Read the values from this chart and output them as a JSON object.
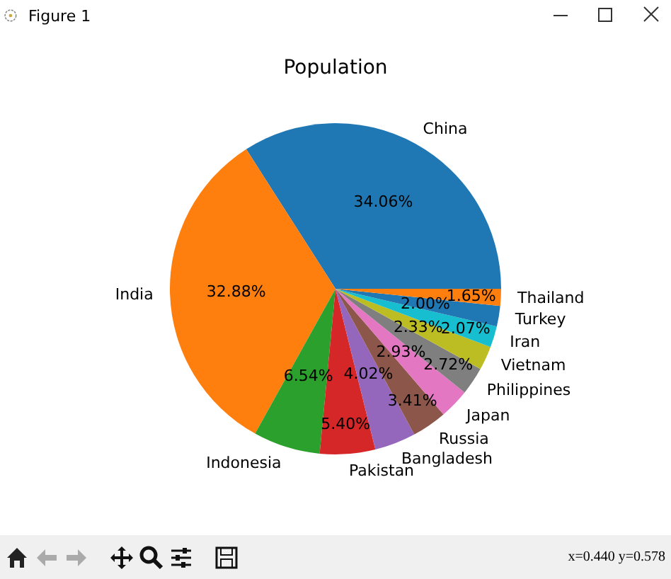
{
  "chart_data": {
    "type": "pie",
    "title": "Population",
    "categories": [
      "China",
      "India",
      "Indonesia",
      "Pakistan",
      "Bangladesh",
      "Russia",
      "Japan",
      "Philippines",
      "Vietnam",
      "Iran",
      "Turkey",
      "Thailand"
    ],
    "values": [
      34.06,
      32.88,
      6.54,
      5.4,
      4.02,
      3.41,
      2.93,
      2.72,
      2.33,
      2.07,
      2.0,
      1.65
    ],
    "value_labels": [
      "34.06%",
      "32.88%",
      "6.54%",
      "5.40%",
      "4.02%",
      "3.41%",
      "2.93%",
      "2.72%",
      "2.33%",
      "2.07%",
      "2.00%",
      "1.65%"
    ],
    "colors": [
      "#1f77b4",
      "#ff7f0e",
      "#2ca02c",
      "#d62728",
      "#9467bd",
      "#8c564b",
      "#e377c2",
      "#7f7f7f",
      "#bcbd22",
      "#17becf",
      "#1f77b4",
      "#ff7f0e"
    ],
    "legend": false,
    "annotations": [
      "Figure 1",
      "x=0.440 y=0.578"
    ]
  }
}
